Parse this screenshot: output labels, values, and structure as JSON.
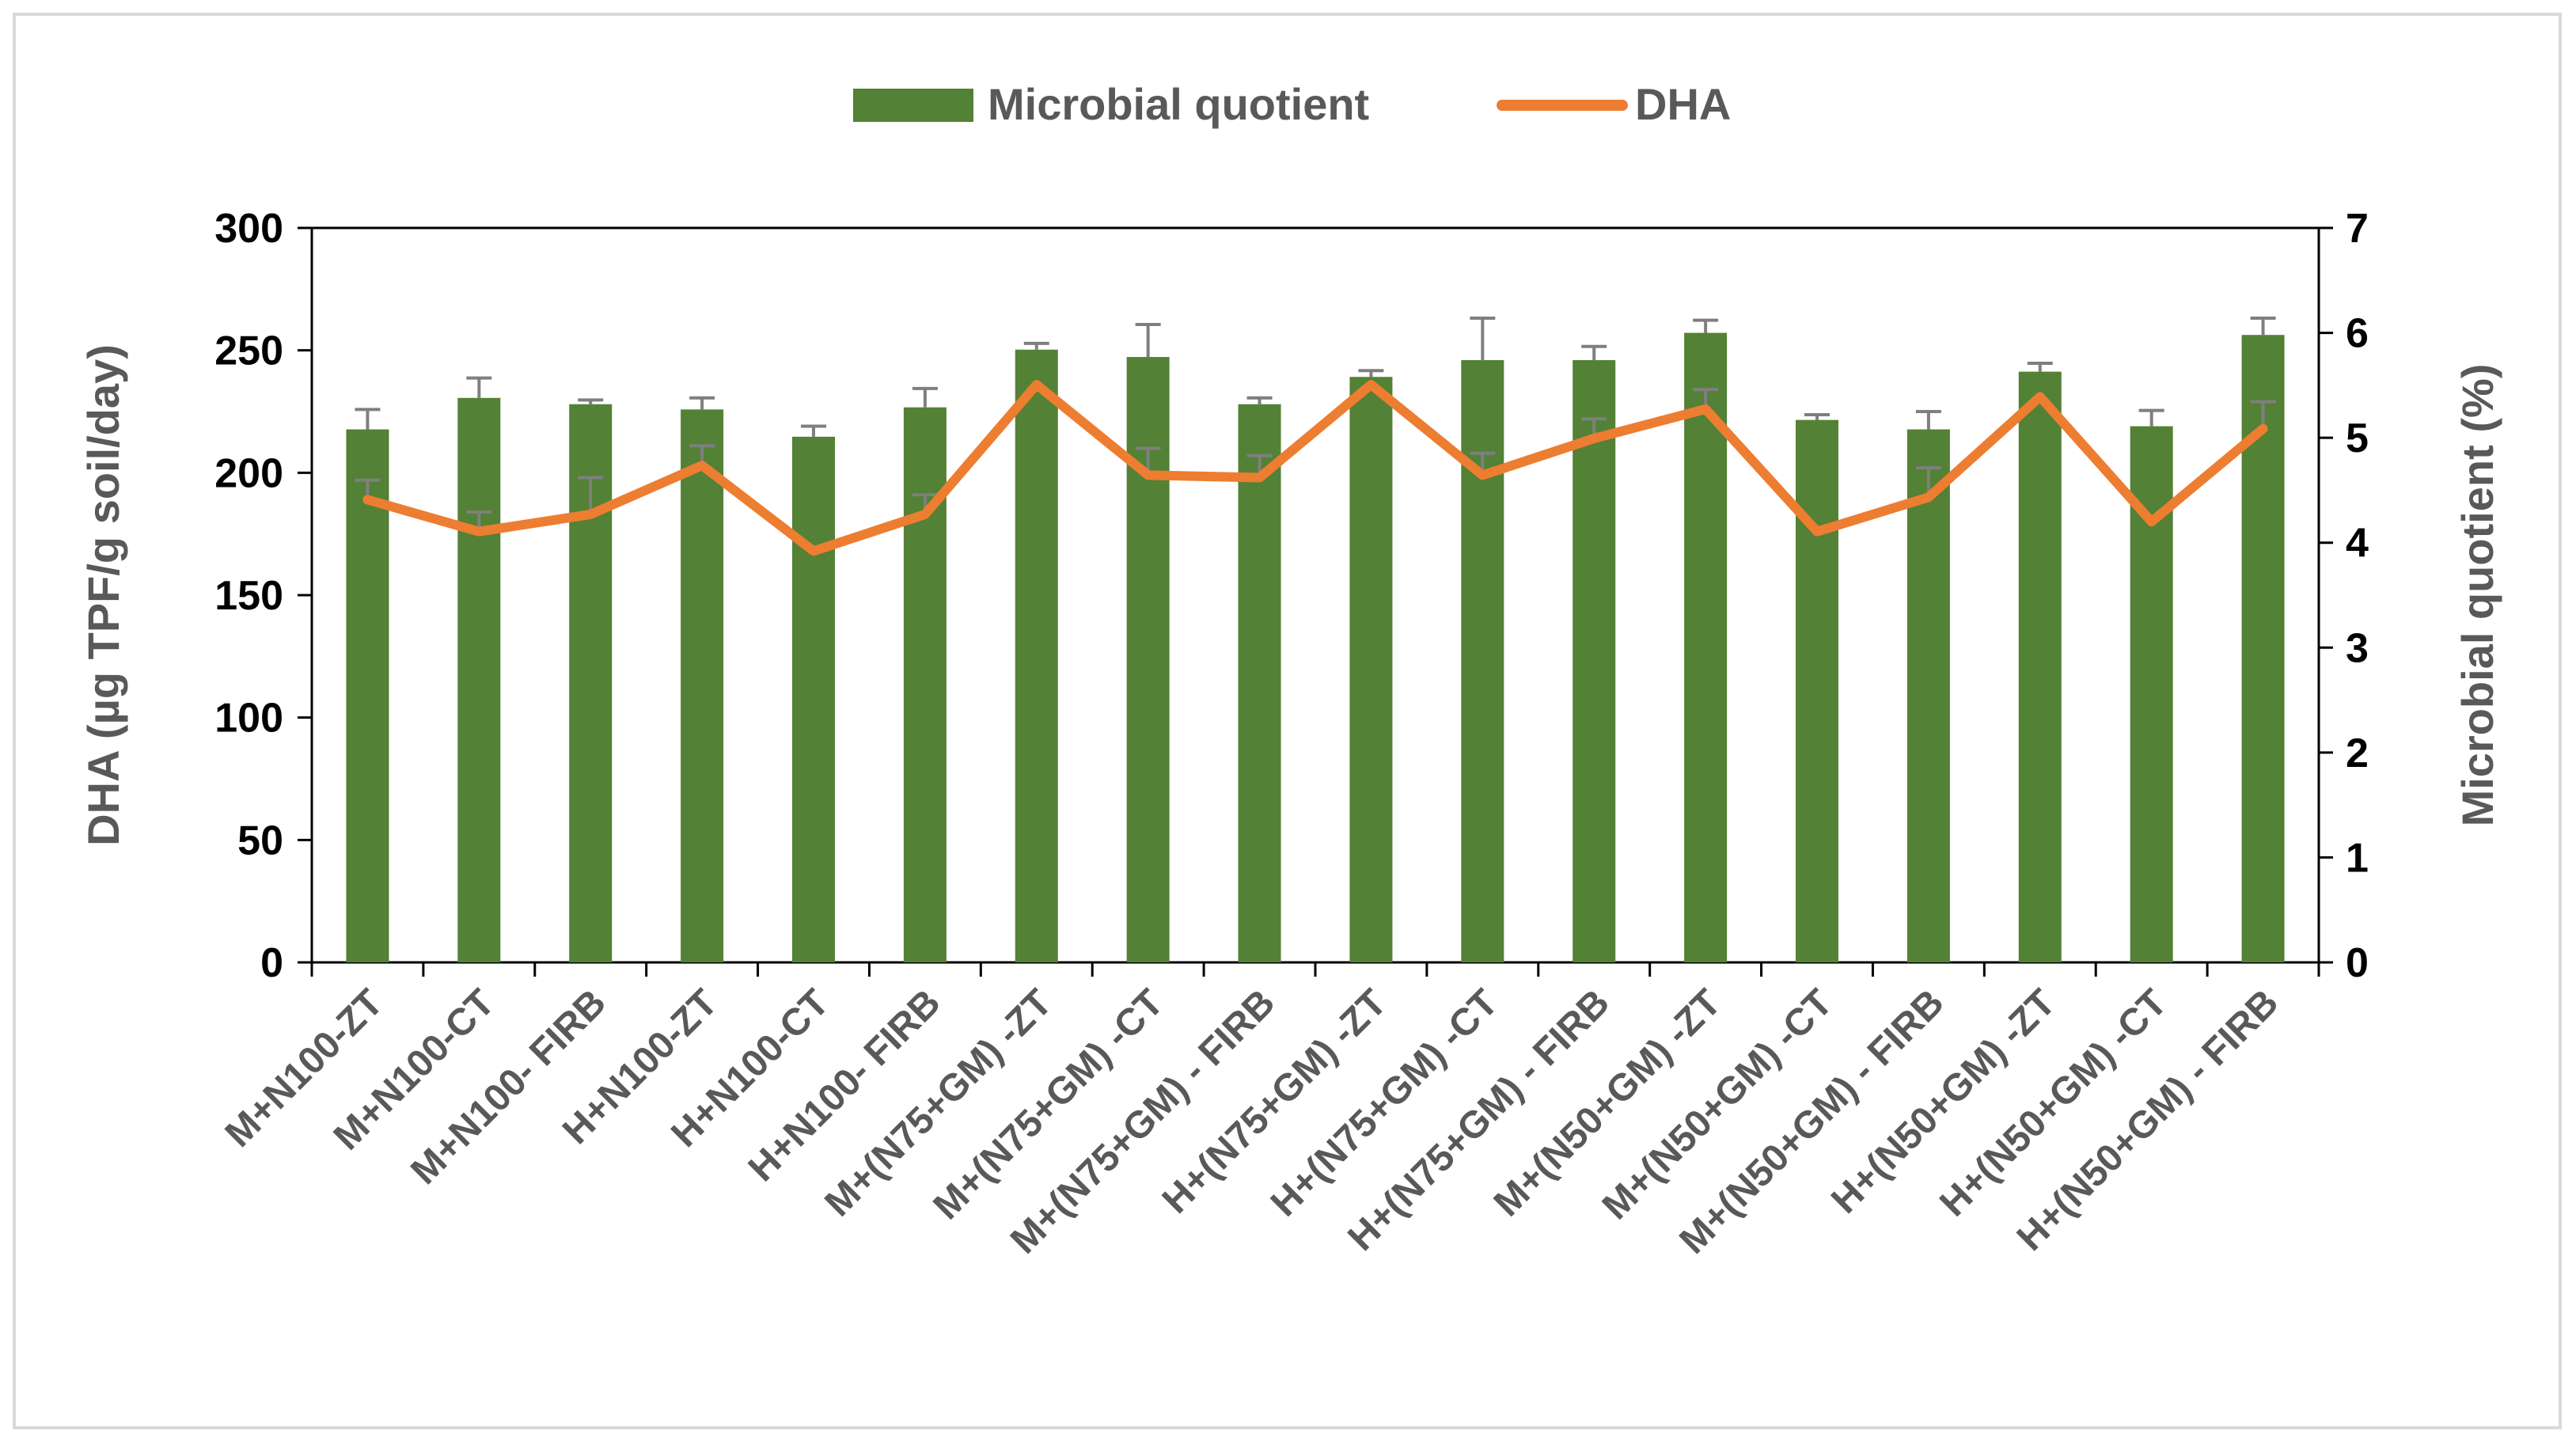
{
  "chart_data": {
    "type": "bar",
    "categories": [
      "M+N100-ZT",
      "M+N100-CT",
      "M+N100- FIRB",
      "H+N100-ZT",
      "H+N100-CT",
      "H+N100- FIRB",
      "M+(N75+GM) -ZT",
      "M+(N75+GM) -CT",
      "M+(N75+GM) - FIRB",
      "H+(N75+GM) -ZT",
      "H+(N75+GM) -CT",
      "H+(N75+GM) - FIRB",
      "M+(N50+GM) -ZT",
      "M+(N50+GM) -CT",
      "M+(N50+GM) - FIRB",
      "H+(N50+GM) -ZT",
      "H+(N50+GM) -CT",
      "H+(N50+GM) - FIRB"
    ],
    "series": [
      {
        "name": "Microbial quotient",
        "type": "bar",
        "axis": "right",
        "color": "#538135",
        "values": [
          5.08,
          5.38,
          5.32,
          5.27,
          5.01,
          5.29,
          5.84,
          5.77,
          5.32,
          5.58,
          5.74,
          5.74,
          6.0,
          5.17,
          5.08,
          5.63,
          5.11,
          5.98
        ],
        "errors": [
          0.19,
          0.19,
          0.04,
          0.11,
          0.1,
          0.18,
          0.06,
          0.31,
          0.06,
          0.06,
          0.4,
          0.13,
          0.12,
          0.05,
          0.17,
          0.08,
          0.15,
          0.16
        ]
      },
      {
        "name": "DHA",
        "type": "line",
        "axis": "left",
        "color": "#ed7d31",
        "values": [
          189,
          176,
          183,
          203,
          168,
          183,
          236,
          199,
          198,
          236,
          199,
          214,
          226,
          176,
          190,
          231,
          180,
          218
        ],
        "errors": [
          8,
          8,
          15,
          8,
          0,
          8,
          0,
          11,
          9,
          0,
          9,
          8,
          8,
          0,
          12,
          0,
          0,
          11
        ]
      }
    ],
    "y_left": {
      "label": "DHA (µg TPF/g soil/day)",
      "ticks": [
        "0",
        "50",
        "100",
        "150",
        "200",
        "250",
        "300"
      ],
      "lim": [
        0,
        300
      ]
    },
    "y_right": {
      "label": "Microbial quotient (%)",
      "ticks": [
        "0",
        "1",
        "2",
        "3",
        "4",
        "5",
        "6",
        "7"
      ],
      "lim": [
        0,
        7
      ]
    },
    "title": "",
    "xlabel": "",
    "legend": {
      "position": "top-center",
      "entries": [
        "Microbial quotient",
        "DHA"
      ]
    },
    "grid": false
  }
}
